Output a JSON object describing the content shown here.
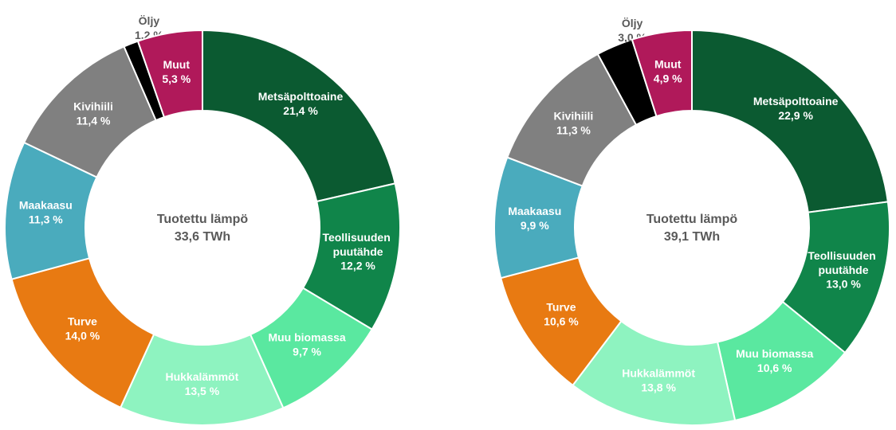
{
  "chart_data": [
    {
      "type": "pie",
      "donut": true,
      "center_title": "Tuotettu lämpö",
      "center_total": "33,6 TWh",
      "categories": [
        "Metsäpolttoaine",
        "Teollisuuden puutähde",
        "Muu biomassa",
        "Hukkalämmöt",
        "Turve",
        "Maakaasu",
        "Kivihiili",
        "Öljy",
        "Muut"
      ],
      "values": [
        21.4,
        12.2,
        9.7,
        13.5,
        14.0,
        11.3,
        11.4,
        1.2,
        5.3
      ],
      "value_labels": [
        "21,4 %",
        "12,2 %",
        "9,7 %",
        "13,5 %",
        "14,0 %",
        "11,3 %",
        "11,4 %",
        "1,2 %",
        "5,3 %"
      ],
      "colors": [
        "#0b5a31",
        "#10854a",
        "#5ae8a0",
        "#8ef3c0",
        "#e87a12",
        "#4aabbd",
        "#808080",
        "#000000",
        "#b0195a"
      ]
    },
    {
      "type": "pie",
      "donut": true,
      "center_title": "Tuotettu lämpö",
      "center_total": "39,1 TWh",
      "categories": [
        "Metsäpolttoaine",
        "Teollisuuden puutähde",
        "Muu biomassa",
        "Hukkalämmöt",
        "Turve",
        "Maakaasu",
        "Kivihiili",
        "Öljy",
        "Muut"
      ],
      "values": [
        22.9,
        13.0,
        10.6,
        13.8,
        10.6,
        9.9,
        11.3,
        3.0,
        4.9
      ],
      "value_labels": [
        "22,9 %",
        "13,0 %",
        "10,6 %",
        "13,8 %",
        "10,6 %",
        "9,9 %",
        "11,3 %",
        "3,0 %",
        "4,9 %"
      ],
      "colors": [
        "#0b5a31",
        "#10854a",
        "#5ae8a0",
        "#8ef3c0",
        "#e87a12",
        "#4aabbd",
        "#808080",
        "#000000",
        "#b0195a"
      ]
    }
  ]
}
